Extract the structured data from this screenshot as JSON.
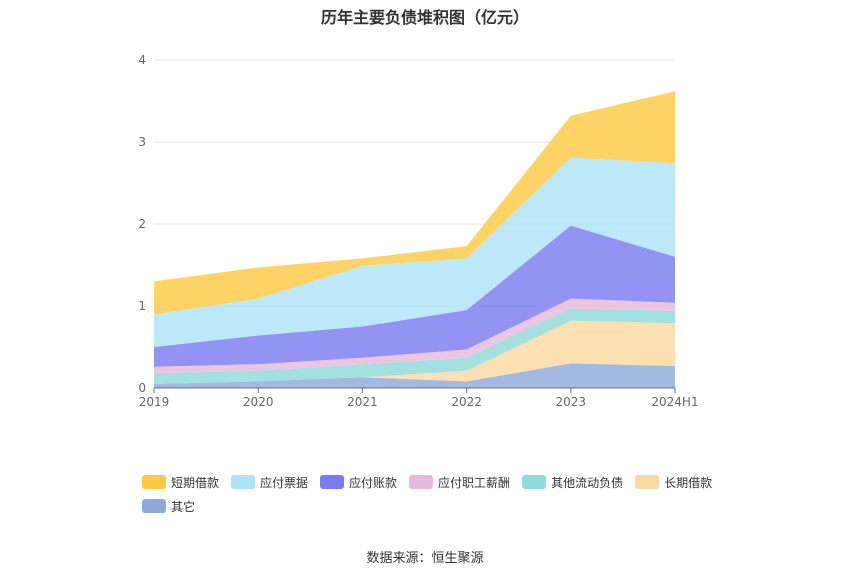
{
  "chart_data": {
    "type": "area",
    "stacked": true,
    "title": "历年主要负债堆积图（亿元）",
    "source": "数据来源：恒生聚源",
    "categories": [
      "2019",
      "2020",
      "2021",
      "2022",
      "2023",
      "2024H1"
    ],
    "ylim": [
      0,
      4
    ],
    "yticks": [
      "0",
      "1",
      "2",
      "3",
      "4"
    ],
    "grid": true,
    "legend_position": "bottom",
    "series": [
      {
        "name": "其它",
        "color": "#8eaadb",
        "values": [
          0.05,
          0.08,
          0.13,
          0.08,
          0.3,
          0.27
        ]
      },
      {
        "name": "长期借款",
        "color": "#fcd9a0",
        "values": [
          0.0,
          0.0,
          0.0,
          0.13,
          0.52,
          0.52
        ]
      },
      {
        "name": "其他流动负债",
        "color": "#8fdada",
        "values": [
          0.13,
          0.13,
          0.16,
          0.16,
          0.15,
          0.15
        ]
      },
      {
        "name": "应付职工薪酬",
        "color": "#e9b8dd",
        "values": [
          0.08,
          0.08,
          0.08,
          0.1,
          0.12,
          0.1
        ]
      },
      {
        "name": "应付账款",
        "color": "#7a7bf0",
        "values": [
          0.24,
          0.35,
          0.38,
          0.48,
          0.89,
          0.56
        ]
      },
      {
        "name": "应付票据",
        "color": "#ade3f8",
        "values": [
          0.4,
          0.45,
          0.74,
          0.63,
          0.83,
          1.14
        ]
      },
      {
        "name": "短期借款",
        "color": "#fec944",
        "values": [
          0.4,
          0.38,
          0.09,
          0.15,
          0.51,
          0.88
        ]
      }
    ]
  },
  "legend_order": [
    "短期借款",
    "应付票据",
    "应付账款",
    "应付职工薪酬",
    "其他流动负债",
    "长期借款",
    "其它"
  ]
}
